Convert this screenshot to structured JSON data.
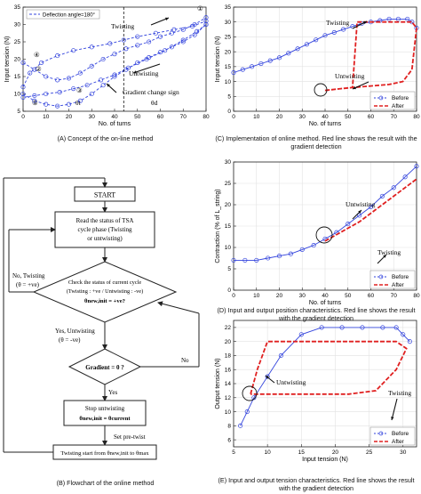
{
  "colors": {
    "before": "#3344dd",
    "after": "#e02020",
    "axis": "#222222",
    "grid": "#e2e2e2"
  },
  "captions": {
    "a": "(A) Concept of the on-line method",
    "b": "(B) Flowchart of the online method",
    "c": "(C) Implementation of online method. Red line shows the result with the gradient detection",
    "d": "(D) Input and output position characteristics. Red line shows the result with the gradient detection",
    "e": "(E) Input and output tension characteristics. Red line shows the result with the gradient detection"
  },
  "flowchart": {
    "start": "START",
    "read": [
      "Read the status of TSA",
      "cycle phase (Twisting",
      "or untwisting)"
    ],
    "check": [
      "Check the status of current cycle",
      "(Twisting : +ve / Untwisting : -ve)",
      "θnew,init = +ve?"
    ],
    "gradient": "Gradient = 0 ?",
    "stop": [
      "Stop untwisting",
      "θnew,init = θcurrent"
    ],
    "twist_start": "Twisting start from θnew,init to θmax",
    "no_twisting": [
      "No, Twisting",
      "(θ = +ve)"
    ],
    "yes_untwisting": [
      "Yes, Untwisting",
      "(θ = -ve)"
    ],
    "no": "No",
    "yes": "Yes",
    "set_pretwist": "Set pre-twist"
  },
  "chart_data": [
    {
      "id": "A",
      "type": "line",
      "title": "",
      "xlabel": "No. of turns",
      "ylabel": "Input tension (N)",
      "xlim": [
        0,
        80
      ],
      "ylim": [
        5,
        35
      ],
      "xticks": [
        0,
        10,
        20,
        30,
        40,
        50,
        60,
        70,
        80
      ],
      "yticks": [
        5,
        10,
        15,
        20,
        25,
        30,
        35
      ],
      "grid": false,
      "legend": {
        "position": "top-left",
        "entries": [
          "Deflection angle=180°"
        ]
      },
      "annotations": [
        "Twisting",
        "Untwisting",
        "Gradient change sign",
        "θt",
        "θd",
        "①",
        "②",
        "③",
        "④",
        "⑤"
      ],
      "series": [
        {
          "values_x": [
            0,
            3,
            8,
            15,
            22,
            30,
            38,
            44,
            50,
            58,
            66,
            74,
            80
          ],
          "values_y": [
            12,
            16,
            19,
            21,
            22.5,
            23.5,
            24.5,
            25.5,
            26.5,
            27.5,
            28.5,
            29.5,
            31
          ]
        },
        {
          "values_x": [
            80,
            76,
            70,
            62,
            54,
            46,
            40,
            34,
            28,
            22,
            16,
            10,
            5,
            0
          ],
          "values_y": [
            30,
            28,
            25.5,
            22.5,
            20,
            17.5,
            15.5,
            14,
            12.5,
            11.5,
            10.5,
            10,
            9.5,
            9
          ]
        },
        {
          "values_x": [
            0,
            5,
            10,
            15,
            20,
            25,
            30,
            35,
            40,
            45,
            50,
            55,
            60,
            65,
            70,
            75,
            80
          ],
          "values_y": [
            10,
            8,
            7,
            6.5,
            7,
            8,
            10,
            12.5,
            15,
            17,
            19,
            20.5,
            22,
            23.5,
            25,
            27,
            30
          ]
        },
        {
          "values_x": [
            0,
            5,
            10,
            15,
            20,
            25,
            30,
            35,
            40,
            45,
            50,
            55,
            60,
            65,
            70,
            75,
            80
          ],
          "values_y": [
            19,
            17,
            15,
            14,
            14.5,
            16,
            18,
            20,
            21.5,
            23,
            24,
            25,
            26.5,
            27.5,
            28.5,
            30,
            32
          ]
        }
      ]
    },
    {
      "id": "C",
      "type": "line",
      "title": "",
      "xlabel": "No. of turns",
      "ylabel": "Input tension (N)",
      "xlim": [
        0,
        80
      ],
      "ylim": [
        0,
        35
      ],
      "xticks": [
        0,
        10,
        20,
        30,
        40,
        50,
        60,
        70,
        80
      ],
      "yticks": [
        0,
        5,
        10,
        15,
        20,
        25,
        30,
        35
      ],
      "grid": true,
      "legend": {
        "position": "bottom-right",
        "entries": [
          "Before",
          "After"
        ]
      },
      "annotations": [
        "Twisting",
        "Untwisting"
      ],
      "series": [
        {
          "name": "Before",
          "x": [
            0,
            4,
            8,
            12,
            16,
            20,
            24,
            28,
            32,
            36,
            40,
            44,
            48,
            52,
            56,
            60,
            64,
            68,
            72,
            76,
            78,
            80
          ],
          "y": [
            13,
            14,
            15,
            16,
            17,
            18,
            19.5,
            21,
            22.5,
            24,
            25.5,
            26.5,
            27.5,
            28.5,
            29.5,
            30,
            30.5,
            31,
            31,
            31,
            30,
            28
          ]
        },
        {
          "name": "After",
          "x": [
            40,
            46,
            52,
            54,
            60,
            66,
            72,
            78,
            80,
            78,
            74,
            68,
            60,
            52,
            46,
            40
          ],
          "y": [
            7,
            7.5,
            8,
            30,
            30,
            30,
            30,
            30,
            28,
            14,
            10,
            9,
            8.5,
            8,
            7.5,
            7
          ]
        }
      ]
    },
    {
      "id": "D",
      "type": "line",
      "title": "",
      "xlabel": "No. of turns",
      "ylabel": "Contraction (% of L_string)",
      "xlim": [
        0,
        80
      ],
      "ylim": [
        0,
        30
      ],
      "xticks": [
        0,
        10,
        20,
        30,
        40,
        50,
        60,
        70,
        80
      ],
      "yticks": [
        0,
        5,
        10,
        15,
        20,
        25,
        30
      ],
      "grid": true,
      "legend": {
        "position": "bottom-right",
        "entries": [
          "Before",
          "After"
        ]
      },
      "annotations": [
        "Untwisting",
        "Twisting"
      ],
      "series": [
        {
          "name": "Before",
          "x": [
            0,
            5,
            10,
            15,
            20,
            25,
            30,
            35,
            40,
            45,
            50,
            55,
            60,
            65,
            70,
            75,
            80
          ],
          "y": [
            7,
            7,
            7,
            7.5,
            8,
            8.5,
            9.5,
            10.5,
            12,
            13.5,
            15.5,
            17.5,
            19.5,
            22,
            24,
            26.5,
            29
          ]
        },
        {
          "name": "After",
          "x": [
            40,
            45,
            50,
            55,
            60,
            65,
            70,
            75,
            80
          ],
          "y": [
            11.5,
            13,
            14.5,
            16,
            18,
            20,
            22,
            24,
            26
          ]
        }
      ]
    },
    {
      "id": "E",
      "type": "line",
      "title": "",
      "xlabel": "Input tension (N)",
      "ylabel": "Output tension (N)",
      "xlim": [
        5,
        32
      ],
      "ylim": [
        5,
        23
      ],
      "xticks": [
        5,
        10,
        15,
        20,
        25,
        30
      ],
      "yticks": [
        6,
        8,
        10,
        12,
        14,
        16,
        18,
        20,
        22
      ],
      "grid": true,
      "legend": {
        "position": "bottom-right",
        "entries": [
          "Before",
          "After"
        ]
      },
      "annotations": [
        "Untwisting",
        "Twisting"
      ],
      "series": [
        {
          "name": "Before",
          "x": [
            6,
            7,
            8,
            10,
            12,
            15,
            18,
            21,
            24,
            27,
            29,
            30,
            31
          ],
          "y": [
            8,
            10,
            12,
            15,
            18,
            21,
            22,
            22,
            22,
            22,
            22,
            21,
            20
          ]
        },
        {
          "name": "After",
          "x": [
            7.5,
            8.5,
            10,
            14,
            18,
            22,
            26,
            29,
            30.5,
            29,
            26,
            22,
            18,
            14,
            10,
            7.5
          ],
          "y": [
            12.5,
            16,
            20,
            20,
            20,
            20,
            20,
            20,
            19,
            16,
            13,
            12.5,
            12.5,
            12.5,
            12.5,
            12.5
          ]
        }
      ]
    }
  ]
}
